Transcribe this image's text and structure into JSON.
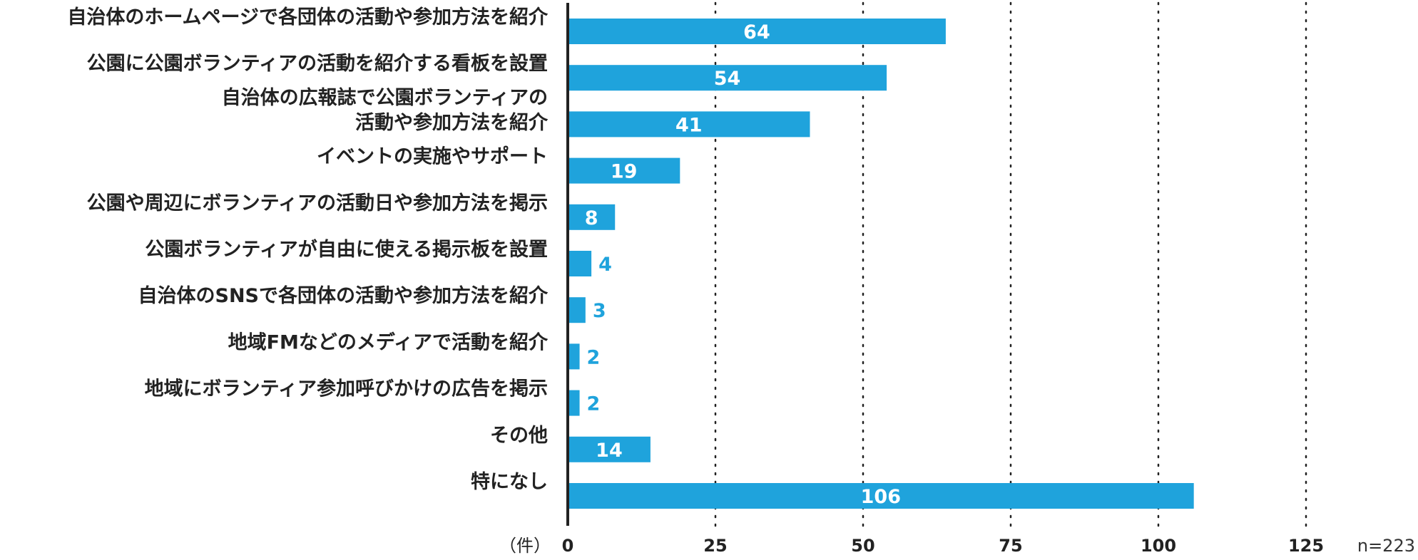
{
  "chart_data": {
    "type": "bar",
    "orientation": "horizontal",
    "categories": [
      [
        "自治体のホームページで各団体の活動や参加方法を紹介"
      ],
      [
        "公園に公園ボランティアの活動を紹介する看板を設置"
      ],
      [
        "自治体の広報誌で公園ボランティアの",
        "活動や参加方法を紹介"
      ],
      [
        "イベントの実施やサポート"
      ],
      [
        "公園や周辺にボランティアの活動日や参加方法を掲示"
      ],
      [
        "公園ボランティアが自由に使える掲示板を設置"
      ],
      [
        "自治体のSNSで各団体の活動や参加方法を紹介"
      ],
      [
        "地域FMなどのメディアで活動を紹介"
      ],
      [
        "地域にボランティア参加呼びかけの広告を掲示"
      ],
      [
        "その他"
      ],
      [
        "特になし"
      ]
    ],
    "values": [
      64,
      54,
      41,
      19,
      8,
      4,
      3,
      2,
      2,
      14,
      106
    ],
    "xlim": [
      0,
      125
    ],
    "ticks": [
      0,
      25,
      50,
      75,
      100,
      125
    ],
    "unit_label": "（件）",
    "sample_note": "n=223",
    "grid": "vertical dotted",
    "colors": {
      "bar": "#1fa3dc",
      "label_inside": "#ffffff",
      "label_outside": "#1fa3dc",
      "text": "#222222",
      "axis": "#222222",
      "grid": "#222222"
    }
  }
}
